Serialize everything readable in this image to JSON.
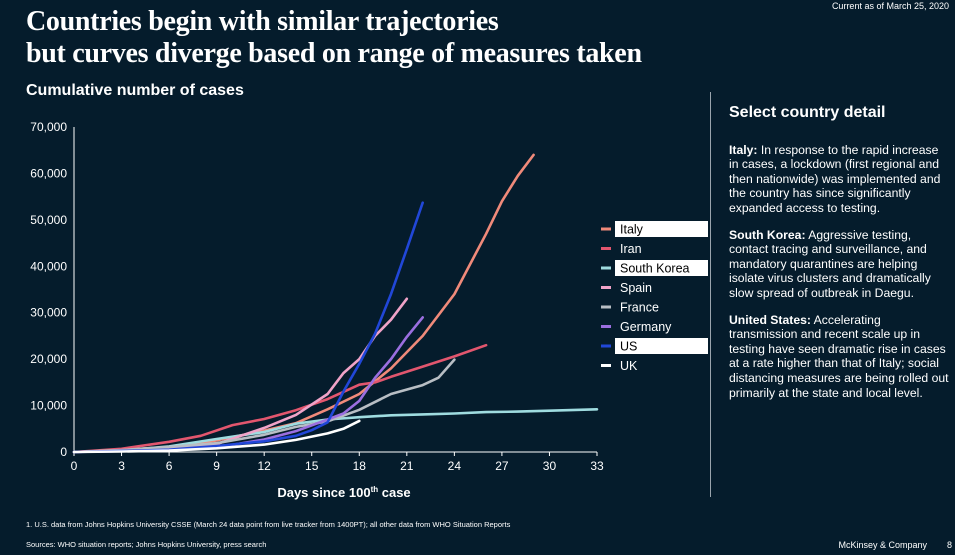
{
  "header": {
    "current_as_of": "Current as of March 25, 2020",
    "title_line1": "Countries begin with similar trajectories",
    "title_line2": "but curves diverge based on range of measures taken"
  },
  "chart_data": {
    "type": "line",
    "title": "Cumulative number of cases",
    "xlabel": "Days since 100",
    "xlabel_sup": "th",
    "xlabel_suffix": " case",
    "xlim": [
      0,
      33
    ],
    "ylim": [
      0,
      70000
    ],
    "x_ticks": [
      0,
      3,
      6,
      9,
      12,
      15,
      18,
      21,
      24,
      27,
      30,
      33
    ],
    "y_ticks": [
      0,
      10000,
      20000,
      30000,
      40000,
      50000,
      60000,
      70000
    ],
    "y_tick_labels": [
      "0",
      "10,000",
      "20,000",
      "30,000",
      "40,000",
      "50,000",
      "60,000",
      "70,000"
    ],
    "legend_position": "right",
    "series": [
      {
        "name": "Italy",
        "color": "#f08a7a",
        "highlight": true,
        "x": [
          0,
          3,
          6,
          9,
          12,
          14,
          16,
          18,
          20,
          22,
          24,
          26,
          27,
          28,
          29
        ],
        "y": [
          0,
          400,
          1100,
          2500,
          4600,
          6200,
          9200,
          12500,
          18000,
          25000,
          34000,
          47000,
          54000,
          59500,
          64000
        ]
      },
      {
        "name": "Iran",
        "color": "#e2566e",
        "highlight": false,
        "x": [
          0,
          3,
          6,
          8,
          10,
          12,
          14,
          16,
          18,
          19,
          20,
          22,
          24,
          26
        ],
        "y": [
          0,
          700,
          2200,
          3500,
          5800,
          7100,
          9000,
          11400,
          14500,
          15000,
          16200,
          18400,
          20600,
          23000
        ]
      },
      {
        "name": "South Korea",
        "color": "#9fdce0",
        "highlight": true,
        "x": [
          0,
          3,
          6,
          9,
          12,
          14,
          16,
          18,
          20,
          22,
          24,
          26,
          28,
          30,
          33
        ],
        "y": [
          0,
          300,
          1200,
          2800,
          4300,
          6100,
          7000,
          7500,
          7900,
          8100,
          8300,
          8600,
          8700,
          8900,
          9200
        ]
      },
      {
        "name": "Spain",
        "color": "#f0a3c8",
        "highlight": false,
        "x": [
          0,
          3,
          6,
          9,
          12,
          14,
          16,
          17,
          18,
          19,
          20,
          21
        ],
        "y": [
          0,
          300,
          800,
          1700,
          5200,
          8000,
          12500,
          17000,
          20000,
          25000,
          28500,
          33000
        ]
      },
      {
        "name": "France",
        "color": "#b8bec4",
        "highlight": false,
        "x": [
          0,
          3,
          6,
          9,
          12,
          14,
          16,
          18,
          20,
          22,
          23,
          24
        ],
        "y": [
          0,
          400,
          1100,
          1900,
          3700,
          5400,
          6600,
          9100,
          12500,
          14400,
          16000,
          19900
        ]
      },
      {
        "name": "Germany",
        "color": "#9b6fe0",
        "highlight": false,
        "x": [
          0,
          3,
          6,
          9,
          12,
          14,
          16,
          17,
          18,
          19,
          20,
          21,
          22
        ],
        "y": [
          0,
          200,
          400,
          1000,
          2700,
          4500,
          7000,
          8300,
          11000,
          16000,
          20000,
          24800,
          29000
        ]
      },
      {
        "name": "US",
        "color": "#2147d8",
        "highlight": true,
        "x": [
          0,
          3,
          6,
          9,
          12,
          14,
          15,
          16,
          17,
          18,
          19,
          20,
          21,
          22
        ],
        "y": [
          0,
          200,
          500,
          1300,
          2300,
          3500,
          4700,
          6400,
          13000,
          19000,
          25500,
          34000,
          43700,
          53700
        ]
      },
      {
        "name": "UK",
        "color": "#ffffff",
        "highlight": false,
        "x": [
          0,
          3,
          6,
          9,
          12,
          14,
          16,
          17,
          18
        ],
        "y": [
          0,
          100,
          300,
          800,
          1600,
          2600,
          4000,
          5000,
          6700
        ]
      }
    ]
  },
  "panel": {
    "title": "Select country detail",
    "items": [
      {
        "label": "Italy:",
        "text": " In response to the rapid increase in cases, a lockdown (first regional and then nationwide) was implemented and the country has since significantly expanded access to testing."
      },
      {
        "label": "South Korea:",
        "text": " Aggressive testing, contact tracing and surveillance, and mandatory quarantines are helping isolate virus clusters and dramatically slow spread of outbreak in Daegu."
      },
      {
        "label": "United States:",
        "text": " Accelerating transmission and recent scale up in testing have seen dramatic rise in cases at a rate higher than that of Italy; social distancing measures are being rolled out primarily at the state and local level."
      }
    ]
  },
  "footer": {
    "footnote": "1. U.S. data from Johns Hopkins University CSSE (March 24 data point from live tracker from 1400PT); all other data from WHO Situation Reports",
    "sources": "Sources: WHO situation reports; Johns Hopkins University, press search",
    "brand": "McKinsey & Company",
    "page": "8"
  }
}
